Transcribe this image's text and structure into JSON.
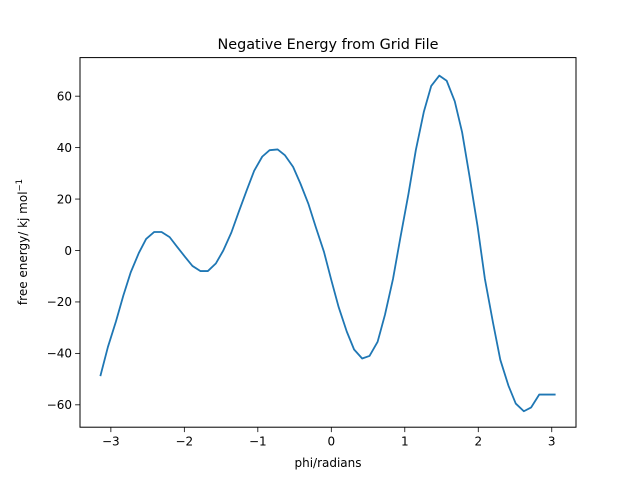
{
  "chart_data": {
    "type": "line",
    "title": "Negative Energy from Grid File",
    "xlabel": "phi/radians",
    "ylabel_main": "free energy/ kj mol",
    "ylabel_sup": "−1",
    "xlim": [
      -3.42,
      3.33
    ],
    "ylim": [
      -68.7,
      75.0
    ],
    "xticks": [
      {
        "value": -3,
        "label": "−3"
      },
      {
        "value": -2,
        "label": "−2"
      },
      {
        "value": -1,
        "label": "−1"
      },
      {
        "value": 0,
        "label": "0"
      },
      {
        "value": 1,
        "label": "1"
      },
      {
        "value": 2,
        "label": "2"
      },
      {
        "value": 3,
        "label": "3"
      }
    ],
    "yticks": [
      {
        "value": -60,
        "label": "−60"
      },
      {
        "value": -40,
        "label": "−40"
      },
      {
        "value": -20,
        "label": "−20"
      },
      {
        "value": 0,
        "label": "0"
      },
      {
        "value": 20,
        "label": "20"
      },
      {
        "value": 40,
        "label": "40"
      },
      {
        "value": 60,
        "label": "60"
      }
    ],
    "grid": false,
    "legend": false,
    "series": [
      {
        "color": "#1f77b4",
        "x": [
          -3.14,
          -3.04,
          -2.93,
          -2.83,
          -2.73,
          -2.62,
          -2.52,
          -2.41,
          -2.31,
          -2.2,
          -2.1,
          -1.99,
          -1.89,
          -1.78,
          -1.68,
          -1.57,
          -1.47,
          -1.36,
          -1.26,
          -1.15,
          -1.05,
          -0.94,
          -0.84,
          -0.73,
          -0.63,
          -0.52,
          -0.42,
          -0.31,
          -0.21,
          -0.1,
          0.0,
          0.1,
          0.21,
          0.31,
          0.42,
          0.52,
          0.63,
          0.73,
          0.84,
          0.94,
          1.05,
          1.15,
          1.26,
          1.36,
          1.47,
          1.57,
          1.68,
          1.78,
          1.88,
          1.99,
          2.09,
          2.2,
          2.3,
          2.41,
          2.51,
          2.62,
          2.72,
          2.83,
          2.93,
          3.04
        ],
        "y": [
          -48.5,
          -37.5,
          -27.5,
          -17.5,
          -8.5,
          -1.0,
          4.5,
          7.2,
          7.2,
          5.2,
          1.5,
          -2.5,
          -6.0,
          -8.0,
          -8.0,
          -5.0,
          0.0,
          7.0,
          15.0,
          23.5,
          31.0,
          36.5,
          39.0,
          39.3,
          37.0,
          32.5,
          26.0,
          18.0,
          9.0,
          -0.5,
          -11.5,
          -22.0,
          -31.5,
          -38.5,
          -42.0,
          -41.0,
          -35.5,
          -25.0,
          -11.0,
          5.0,
          22.0,
          39.0,
          54.0,
          64.0,
          68.0,
          66.0,
          58.0,
          46.0,
          29.0,
          9.5,
          -11.0,
          -28.0,
          -42.5,
          -52.5,
          -59.5,
          -62.5,
          -61.0,
          -56.0,
          -56.0,
          -56.0
        ]
      }
    ]
  }
}
